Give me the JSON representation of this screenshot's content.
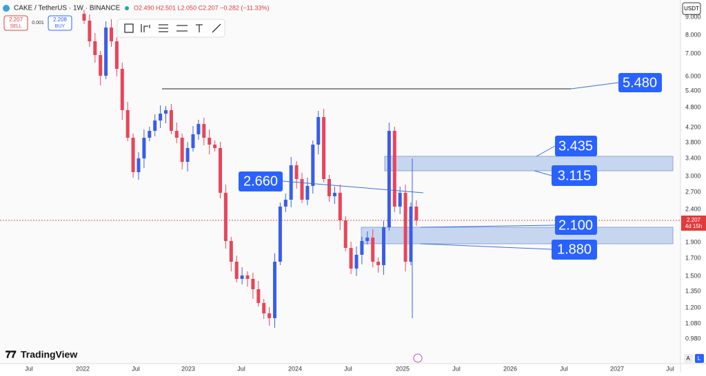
{
  "header": {
    "symbol": "CAKE / TetherUS · 1W · BINANCE",
    "ohlc": "O2.490 H2.501 L2.050 C2.207 −0.282 (−11.33%)",
    "sell_price": "2.207",
    "sell": "SELL",
    "spread": "0.001",
    "buy_price": "2.208",
    "buy": "BUY"
  },
  "price_axis": {
    "currency": "USDT",
    "labels": [
      "9.000",
      "8.000",
      "7.000",
      "6.000",
      "5.400",
      "4.800",
      "4.200",
      "3.800",
      "3.400",
      "3.000",
      "2.700",
      "2.400",
      "1.900",
      "1.700",
      "1.500",
      "1.350",
      "1.200",
      "1.080",
      "0.980"
    ],
    "last_price": "2.207",
    "countdown": "4d 15h"
  },
  "time_axis": {
    "labels": [
      "Jul",
      "2022",
      "Jul",
      "2023",
      "Jul",
      "2024",
      "Jul",
      "2025",
      "Jul",
      "2026",
      "Jul",
      "2027",
      "Jul"
    ]
  },
  "annotations": [
    "5.480",
    "3.435",
    "3.115",
    "2.660",
    "2.100",
    "1.880"
  ],
  "logo": "TradingView",
  "corner_buttons": [
    "A",
    "L"
  ]
}
